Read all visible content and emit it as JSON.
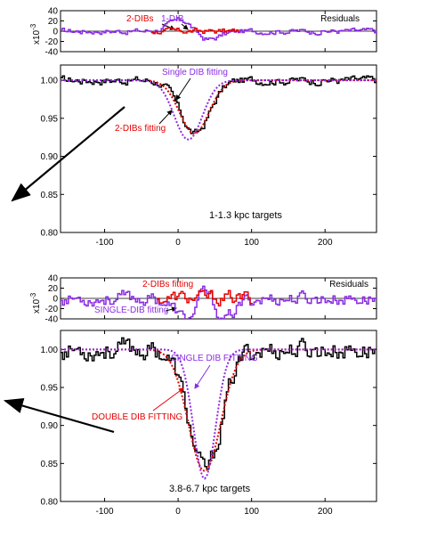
{
  "colors": {
    "observed": "#000000",
    "two_dib": "#e60000",
    "single_dib": "#8a2be2",
    "frame": "#000000"
  },
  "chart_data": [
    {
      "type": "line",
      "panel_label": "1-1.3 kpc targets",
      "xlim": [
        -160,
        270
      ],
      "ylim": [
        0.8,
        1.02
      ],
      "xticks": [
        -100,
        0,
        100,
        200
      ],
      "yticks": [
        0.8,
        0.85,
        0.9,
        0.95,
        1.0
      ],
      "xtick_labels": [
        "-100",
        "0",
        "100",
        "200"
      ],
      "ytick_labels": [
        "0.80",
        "0.85",
        "0.90",
        "0.95",
        "1.00"
      ],
      "annotations": [
        {
          "text": "Single DIB fitting",
          "color": "#8a2be2"
        },
        {
          "text": "2-DIBs fitting",
          "color": "#e60000"
        }
      ],
      "dip": {
        "center": 22,
        "sigma": 20,
        "depth": 0.07,
        "single_center": 14,
        "single_sigma": 19,
        "single_depth": 0.078
      },
      "series": [
        {
          "role": "observed",
          "noise": 0.004,
          "values_note": ""
        },
        {
          "role": "two_dib"
        },
        {
          "role": "single_dib"
        }
      ],
      "residuals": {
        "ylim": [
          -40,
          40
        ],
        "yticks": [
          -40,
          -20,
          0,
          20,
          40
        ],
        "ytick_labels": [
          "-40",
          "-20",
          "0",
          "20",
          "40"
        ],
        "scale_label": "x10",
        "scale_exp": "-3",
        "title": "Residuals",
        "labels": [
          {
            "text": "2-DIBs",
            "color": "#e60000"
          },
          {
            "text": "1-DIB",
            "color": "#8a2be2"
          }
        ]
      }
    },
    {
      "type": "line",
      "panel_label": "3.8-6.7 kpc targets",
      "xlim": [
        -160,
        270
      ],
      "ylim": [
        0.8,
        1.025
      ],
      "xticks": [
        -100,
        0,
        100,
        200
      ],
      "yticks": [
        0.8,
        0.85,
        0.9,
        0.95,
        1.0
      ],
      "xtick_labels": [
        "-100",
        "0",
        "100",
        "200"
      ],
      "ytick_labels": [
        "0.80",
        "0.85",
        "0.90",
        "0.95",
        "1.00"
      ],
      "annotations": [
        {
          "text": "SINGLE DIB FITTING",
          "color": "#8a2be2"
        },
        {
          "text": "DOUBLE DIB FITTING",
          "color": "#e60000"
        }
      ],
      "dip": {
        "center": 36,
        "sigma": 22,
        "depth": 0.16,
        "single_center": 36,
        "single_sigma": 15,
        "single_depth": 0.17
      },
      "series": [
        {
          "role": "observed",
          "noise": 0.01
        },
        {
          "role": "two_dib"
        },
        {
          "role": "single_dib"
        }
      ],
      "residuals": {
        "ylim": [
          -40,
          40
        ],
        "yticks": [
          -40,
          -20,
          0,
          20,
          40
        ],
        "ytick_labels": [
          "-40",
          "-20",
          "0",
          "20",
          "40"
        ],
        "scale_label": "x10",
        "scale_exp": "-3",
        "title": "Residuals",
        "labels": [
          {
            "text": "2-DIBs fitting",
            "color": "#e60000"
          },
          {
            "text": "SINGLE-DIB fitting",
            "color": "#8a2be2"
          }
        ]
      }
    }
  ]
}
